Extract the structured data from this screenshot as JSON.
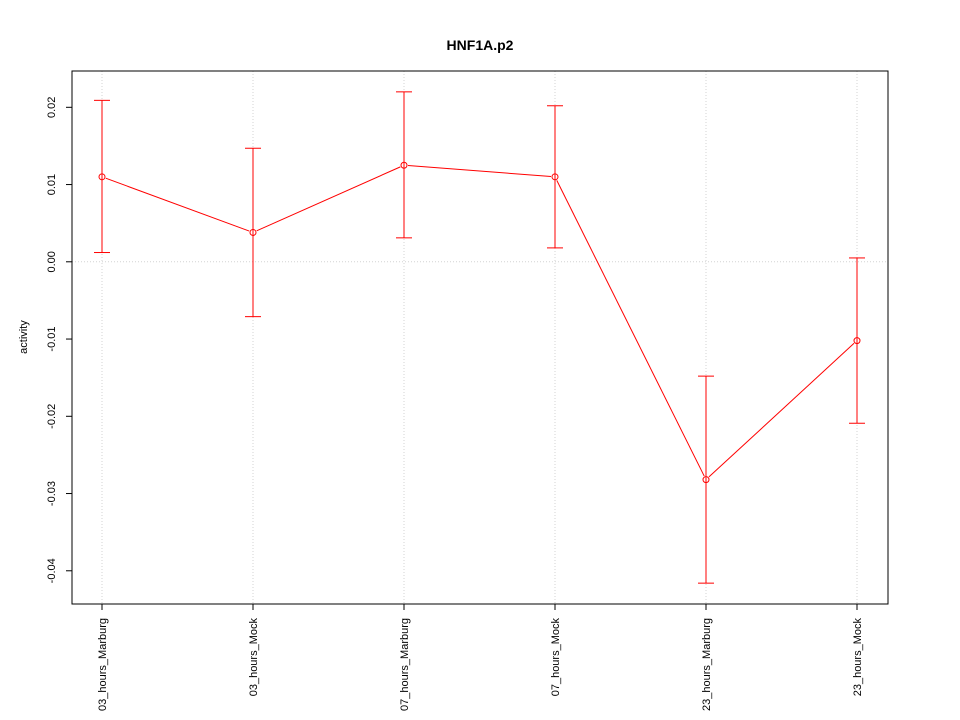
{
  "chart_data": {
    "type": "line",
    "title": "HNF1A.p2",
    "xlabel": "",
    "ylabel": "activity",
    "categories": [
      "03_hours_Marburg",
      "03_hours_Mock",
      "07_hours_Marburg",
      "07_hours_Mock",
      "23_hours_Marburg",
      "23_hours_Mock"
    ],
    "series": [
      {
        "values": [
          0.011,
          0.0038,
          0.0125,
          0.011,
          -0.0282,
          -0.0102
        ],
        "upper": [
          0.0209,
          0.0147,
          0.022,
          0.0202,
          -0.0148,
          0.0005
        ],
        "lower": [
          0.0012,
          -0.0071,
          0.0031,
          0.0018,
          -0.0416,
          -0.0209
        ],
        "color": "#ff0000"
      }
    ],
    "yticks": [
      -0.04,
      -0.03,
      -0.02,
      -0.01,
      0.0,
      0.01,
      0.02
    ],
    "ytick_labels": [
      "-0.04",
      "-0.03",
      "-0.02",
      "-0.01",
      "0.00",
      "0.01",
      "0.02"
    ],
    "ylim": [
      -0.0443,
      0.0247
    ],
    "grid": true,
    "grid_color": "#d3d3d3"
  }
}
